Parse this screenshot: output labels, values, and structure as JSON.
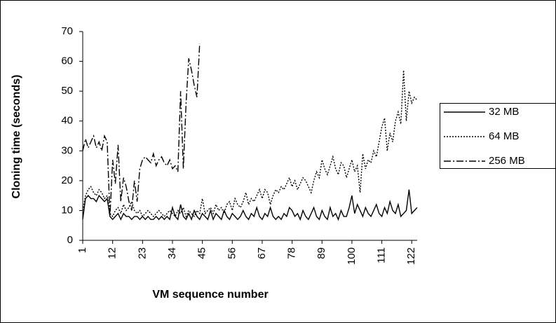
{
  "chart_data": {
    "type": "line",
    "x_label": "VM sequence number",
    "y_label": "Cloning time (seconds)",
    "x": [
      1,
      2,
      3,
      4,
      5,
      6,
      7,
      8,
      9,
      10,
      11,
      12,
      13,
      14,
      15,
      16,
      17,
      18,
      19,
      20,
      21,
      22,
      23,
      24,
      25,
      26,
      27,
      28,
      29,
      30,
      31,
      32,
      33,
      34,
      35,
      36,
      37,
      38,
      39,
      40,
      41,
      42,
      43,
      44,
      45,
      46,
      47,
      48,
      49,
      50,
      51,
      52,
      53,
      54,
      55,
      56,
      57,
      58,
      59,
      60,
      61,
      62,
      63,
      64,
      65,
      66,
      67,
      68,
      69,
      70,
      71,
      72,
      73,
      74,
      75,
      76,
      77,
      78,
      79,
      80,
      81,
      82,
      83,
      84,
      85,
      86,
      87,
      88,
      89,
      90,
      91,
      92,
      93,
      94,
      95,
      96,
      97,
      98,
      99,
      100,
      101,
      102,
      103,
      104,
      105,
      106,
      107,
      108,
      109,
      110,
      111,
      112,
      113,
      114,
      115,
      116,
      117,
      118,
      119,
      120,
      121,
      122,
      123,
      124
    ],
    "series": [
      {
        "name": "32 MB",
        "color": "#000000",
        "dash": "solid",
        "values": [
          7,
          14,
          15,
          14,
          14,
          13,
          15,
          14,
          13,
          14,
          8,
          7,
          8,
          9,
          7,
          9,
          8,
          8,
          7,
          8,
          8,
          7,
          8,
          7,
          8,
          7,
          7,
          8,
          7,
          8,
          7,
          8,
          7,
          11,
          8,
          7,
          12,
          8,
          7,
          9,
          7,
          10,
          8,
          7,
          9,
          8,
          7,
          10,
          7,
          9,
          8,
          7,
          10,
          8,
          7,
          9,
          8,
          7,
          8,
          10,
          8,
          7,
          9,
          8,
          11,
          8,
          7,
          9,
          8,
          11,
          8,
          7,
          8,
          7,
          9,
          8,
          11,
          10,
          8,
          9,
          7,
          10,
          8,
          7,
          9,
          11,
          8,
          7,
          10,
          8,
          7,
          11,
          8,
          9,
          7,
          10,
          8,
          8,
          11,
          15,
          9,
          12,
          10,
          8,
          11,
          9,
          8,
          10,
          12,
          9,
          8,
          11,
          9,
          13,
          10,
          9,
          12,
          8,
          9,
          10,
          17,
          9,
          10,
          11
        ]
      },
      {
        "name": "64 MB",
        "color": "#000000",
        "dash": "dotted",
        "values": [
          10,
          15,
          17,
          18,
          16,
          15,
          17,
          16,
          14,
          15,
          9,
          8,
          10,
          11,
          9,
          12,
          10,
          11,
          13,
          10,
          9,
          10,
          8,
          9,
          10,
          9,
          8,
          9,
          10,
          9,
          8,
          9,
          10,
          9,
          8,
          10,
          9,
          11,
          8,
          10,
          9,
          8,
          10,
          9,
          14,
          9,
          10,
          11,
          9,
          12,
          10,
          11,
          9,
          12,
          13,
          10,
          14,
          12,
          11,
          13,
          16,
          12,
          14,
          13,
          15,
          17,
          14,
          17,
          16,
          12,
          15,
          17,
          16,
          18,
          17,
          19,
          21,
          18,
          20,
          17,
          19,
          21,
          20,
          18,
          16,
          20,
          23,
          21,
          27,
          24,
          22,
          25,
          28,
          24,
          22,
          26,
          25,
          21,
          24,
          27,
          23,
          25,
          16,
          29,
          24,
          27,
          26,
          30,
          28,
          33,
          38,
          41,
          30,
          36,
          33,
          40,
          43,
          39,
          57,
          40,
          50,
          46,
          48,
          47
        ]
      },
      {
        "name": "256 MB",
        "color": "#000000",
        "dash": "dashdot",
        "values": [
          30,
          34,
          31,
          33,
          35,
          31,
          33,
          30,
          35,
          33,
          8,
          27,
          19,
          32,
          13,
          21,
          18,
          13,
          10,
          20,
          13,
          24,
          27,
          28,
          27,
          26,
          29,
          25,
          27,
          28,
          26,
          25,
          27,
          24,
          25,
          23,
          50,
          24,
          46,
          61,
          57,
          52,
          48,
          66,
          null,
          null,
          null,
          null,
          null,
          null,
          null,
          null,
          null,
          null,
          null,
          null,
          null,
          null,
          null,
          null,
          null,
          null,
          null,
          null,
          null,
          null,
          null,
          null,
          null,
          null,
          null,
          null,
          null,
          null,
          null,
          null,
          null,
          null,
          null,
          null,
          null,
          null,
          null,
          null,
          null,
          null,
          null,
          null,
          null,
          null,
          null,
          null,
          null,
          null,
          null,
          null,
          null,
          null,
          null,
          null,
          null,
          null,
          null,
          null,
          null,
          null,
          null,
          null,
          null,
          null,
          null,
          null,
          null,
          null,
          null,
          null,
          null,
          null,
          null,
          null,
          null,
          null,
          null,
          null
        ]
      }
    ],
    "xlim": [
      1,
      124
    ],
    "xticks": [
      1,
      12,
      23,
      34,
      45,
      56,
      67,
      78,
      89,
      100,
      111,
      122
    ],
    "ylim": [
      0,
      70
    ],
    "yticks": [
      0,
      10,
      20,
      30,
      40,
      50,
      60,
      70
    ],
    "legend": "right"
  }
}
